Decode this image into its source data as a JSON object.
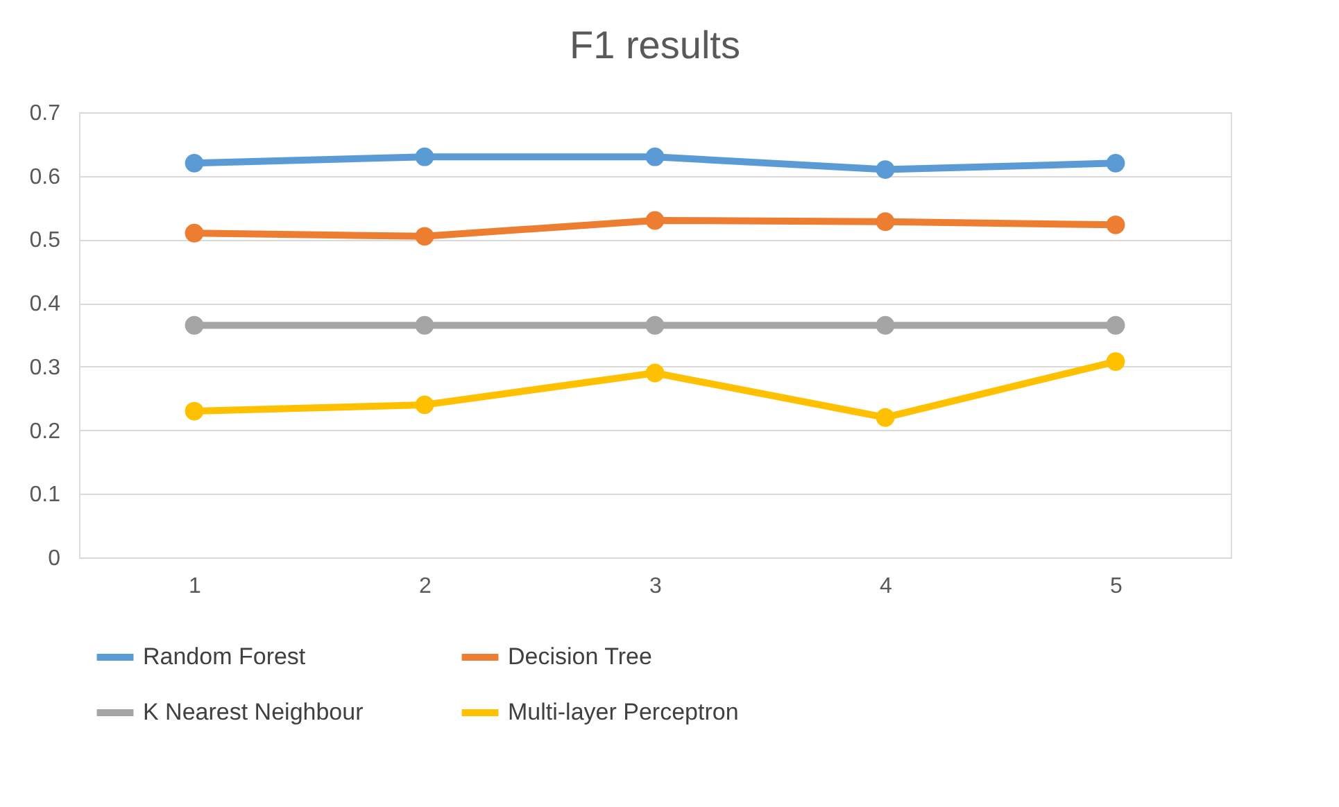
{
  "chart_data": {
    "type": "line",
    "title": "F1 results",
    "categories": [
      "1",
      "2",
      "3",
      "4",
      "5"
    ],
    "series": [
      {
        "name": "Random Forest",
        "color": "#5b9bd5",
        "values": [
          0.62,
          0.63,
          0.63,
          0.61,
          0.62
        ]
      },
      {
        "name": "Decision Tree",
        "color": "#ed7d31",
        "values": [
          0.51,
          0.505,
          0.53,
          0.528,
          0.523
        ]
      },
      {
        "name": "K Nearest Neighbour",
        "color": "#a5a5a5",
        "values": [
          0.365,
          0.365,
          0.365,
          0.365,
          0.365
        ]
      },
      {
        "name": "Multi-layer Perceptron",
        "color": "#ffc000",
        "values": [
          0.23,
          0.24,
          0.29,
          0.22,
          0.308
        ]
      }
    ],
    "ylim": [
      0,
      0.7
    ],
    "yticks": [
      0,
      0.1,
      0.2,
      0.3,
      0.4,
      0.5,
      0.6,
      0.7
    ],
    "grid": "y",
    "legend": "bottom",
    "marker": "circle",
    "line_style": "solid"
  }
}
